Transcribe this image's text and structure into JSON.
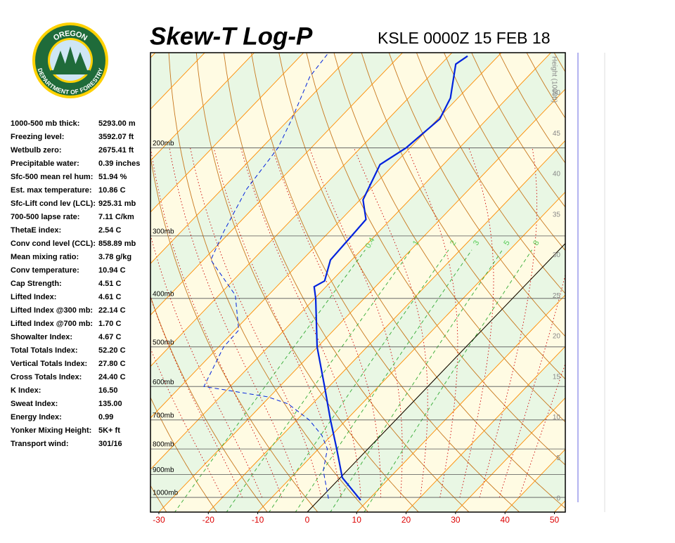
{
  "logo": {
    "top": "OREGON",
    "bottom": "DEPARTMENT OF FORESTRY"
  },
  "stats": [
    [
      "1000-500 mb thick:",
      "5293.00 m"
    ],
    [
      "Freezing level:",
      "3592.07 ft"
    ],
    [
      "Wetbulb zero:",
      "2675.41 ft"
    ],
    [
      "Precipitable water:",
      "0.39 inches"
    ],
    [
      "Sfc-500 mean rel hum:",
      "51.94 %"
    ],
    [
      "Est. max temperature:",
      "10.86 C"
    ],
    [
      "Sfc-Lift cond lev (LCL):",
      "925.31 mb"
    ],
    [
      "700-500 lapse rate:",
      "7.11 C/km"
    ],
    [
      "ThetaE index:",
      "2.54 C"
    ],
    [
      "Conv cond level (CCL):",
      "858.89 mb"
    ],
    [
      "  Mean mixing ratio:",
      "3.78 g/kg"
    ],
    [
      "  Conv temperature:",
      "10.94 C"
    ],
    [
      "Cap Strength:",
      "4.51 C"
    ],
    [
      "Lifted Index:",
      "4.61 C"
    ],
    [
      "Lifted Index @300 mb:",
      "22.14 C"
    ],
    [
      "Lifted Index @700 mb:",
      "1.70 C"
    ],
    [
      "Showalter Index:",
      "4.67 C"
    ],
    [
      "Total Totals Index:",
      "52.20 C"
    ],
    [
      "  Vertical Totals Index:",
      "27.80 C"
    ],
    [
      "  Cross Totals Index:",
      "24.40 C"
    ],
    [
      "K Index:",
      "16.50"
    ],
    [
      "Sweat Index:",
      "135.00"
    ],
    [
      "Energy Index:",
      "0.99"
    ],
    [
      "Yonker Mixing Height:",
      "5K+ ft"
    ],
    [
      "Transport wind:",
      "301/16"
    ]
  ],
  "chart_data": {
    "type": "skewt",
    "title": "Skew-T Log-P",
    "subtitle": "KSLE 0000Z 15 FEB 18",
    "xlim": [
      -31.7,
      52.2
    ],
    "xticks": [
      -30,
      -20,
      -10,
      0,
      10,
      20,
      30,
      40,
      50
    ],
    "ylim": [
      1070,
      129
    ],
    "yticks": [
      {
        "value": 200,
        "label": "200mb"
      },
      {
        "value": 300,
        "label": "300mb"
      },
      {
        "value": 400,
        "label": "400mb"
      },
      {
        "value": 500,
        "label": "500mb"
      },
      {
        "value": 600,
        "label": "600mb"
      },
      {
        "value": 700,
        "label": "700mb"
      },
      {
        "value": 800,
        "label": "800mb"
      },
      {
        "value": 900,
        "label": "900mb"
      },
      {
        "value": 1000,
        "label": "1000mb"
      }
    ],
    "height_axis": {
      "label": "Height (1000ft)",
      "ticks": [
        0,
        5,
        10,
        15,
        20,
        25,
        30,
        35,
        40,
        45,
        50
      ]
    },
    "mixing_ratios": [
      {
        "value": 0.4,
        "label": "0.4"
      },
      1,
      2,
      3,
      5,
      8
    ],
    "series": [
      {
        "name": "Temperature",
        "color": "#0022dd",
        "pressure": [
          1013,
          913,
          800,
          700,
          600,
          500,
          400,
          379,
          369,
          335,
          300,
          278,
          254,
          216,
          200,
          175,
          159,
          136,
          131
        ],
        "values": [
          8.5,
          0.4,
          -6.3,
          -13.2,
          -20.9,
          -30.1,
          -39.8,
          -42.4,
          -41.4,
          -44.3,
          -44.7,
          -45.0,
          -49.4,
          -52.8,
          -50.8,
          -49.6,
          -51.5,
          -57.0,
          -56.2
        ]
      },
      {
        "name": "Dewpoint",
        "color": "#0022dd",
        "pressure": [
          1006,
          884,
          800,
          752,
          700,
          650,
          629,
          600,
          500,
          463,
          394,
          335,
          294,
          242,
          200,
          175,
          144,
          130
        ],
        "values": [
          1.7,
          -4.8,
          -8.2,
          -11.9,
          -17.5,
          -24.9,
          -30.5,
          -45.3,
          -49.0,
          -49.2,
          -56.7,
          -68.5,
          -71.4,
          -75.0,
          -76.7,
          -79.5,
          -84.1,
          -84.9
        ]
      }
    ]
  }
}
